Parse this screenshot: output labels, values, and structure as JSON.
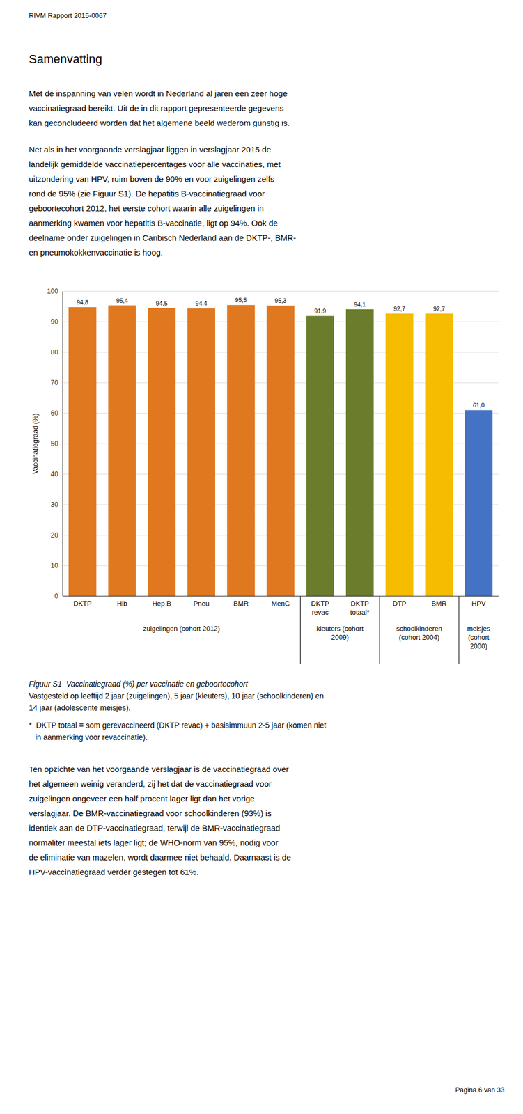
{
  "figure_title": "RIVM Rapport 2015-0067",
  "section_title": "Samenvatting",
  "para1_lines": [
    "Met de inspanning van velen wordt in Nederland al jaren een zeer hoge",
    "vaccinatiegraad bereikt. Uit de in dit rapport gepresenteerde gegevens",
    "kan geconcludeerd worden dat het algemene beeld wederom gunstig is."
  ],
  "para2_lines": [
    "Net als in het voorgaande verslagjaar liggen in verslagjaar 2015 de",
    "landelijk gemiddelde vaccinatiepercentages voor alle vaccinaties, met",
    "uitzondering van HPV, ruim boven de 90% en voor zuigelingen zelfs",
    "rond de 95% (zie Figuur S1). De hepatitis B-vaccinatiegraad voor",
    "geboortecohort 2012, het eerste cohort waarin alle zuigelingen in",
    "aanmerking kwamen voor hepatitis B-vaccinatie, ligt op 94%. Ook de",
    "deelname onder zuigelingen in Caribisch Nederland aan de DKTP-, BMR-",
    "en pneumokokkenvaccinatie is hoog."
  ],
  "chart_data": {
    "type": "bar",
    "categories": [
      "DKTP",
      "Hib",
      "Hep B",
      "Pneu",
      "BMR",
      "MenC",
      "DKTP\nrevac",
      "DKTP\ntotaal*",
      "DTP",
      "BMR",
      "HPV"
    ],
    "values": [
      94.8,
      95.4,
      94.5,
      94.4,
      95.5,
      95.3,
      91.9,
      94.1,
      92.7,
      92.7,
      61.0
    ],
    "value_labels": [
      "94,8",
      "95,4",
      "94,5",
      "94,4",
      "95,5",
      "95,3",
      "91,9",
      "94,1",
      "92,7",
      "92,7",
      "61,0"
    ],
    "data_labels": true,
    "colors": [
      "#E07820",
      "#E07820",
      "#E07820",
      "#E07820",
      "#E07820",
      "#E07820",
      "#6B7D2C",
      "#6B7D2C",
      "#F5BC00",
      "#F5BC00",
      "#4472C4"
    ],
    "ylabel": "Vaccinatiegraad (%)",
    "ylim": [
      0,
      100
    ],
    "yticks": [
      0,
      10,
      20,
      30,
      40,
      50,
      60,
      70,
      80,
      90,
      100
    ],
    "grid": true,
    "groups": [
      {
        "start": 0,
        "end": 5,
        "label": "zuigelingen (cohort 2012)"
      },
      {
        "start": 6,
        "end": 7,
        "label": "kleuters (cohort\n2009)"
      },
      {
        "start": 8,
        "end": 9,
        "label": "schoolkinderen\n(cohort 2004)"
      },
      {
        "start": 10,
        "end": 10,
        "label": "meisjes\n(cohort\n2000)"
      }
    ]
  },
  "fig_caption_line1": "Figuur S1  Vaccinatiegraad (%) per vaccinatie en geboortecohort",
  "fig_caption_lines": [
    "Vastgesteld op leeftijd 2 jaar (zuigelingen), 5 jaar (kleuters), 10 jaar (schoolkinderen) en",
    "14 jaar (adolescente meisjes)."
  ],
  "footnote_lines": [
    "*  DKTP totaal = som gerevaccineerd (DKTP revac) + basisimmuun 2-5 jaar (komen niet",
    "   in aanmerking voor revaccinatie)."
  ],
  "para3_lines": [
    "Ten opzichte van het voorgaande verslagjaar is de vaccinatiegraad over",
    "het algemeen weinig veranderd, zij het dat de vaccinatiegraad voor",
    "zuigelingen ongeveer een half procent lager ligt dan het vorige",
    "verslagjaar. De BMR-vaccinatiegraad voor schoolkinderen (93%) is",
    "identiek aan de DTP-vaccinatiegraad, terwijl de BMR-vaccinatiegraad",
    "normaliter meestal iets lager ligt; de WHO-norm van 95%, nodig voor",
    "de eliminatie van mazelen, wordt daarmee niet behaald. Daarnaast is de",
    "HPV-vaccinatiegraad verder gestegen tot 61%."
  ],
  "page_footer": "Pagina 6 van 33"
}
